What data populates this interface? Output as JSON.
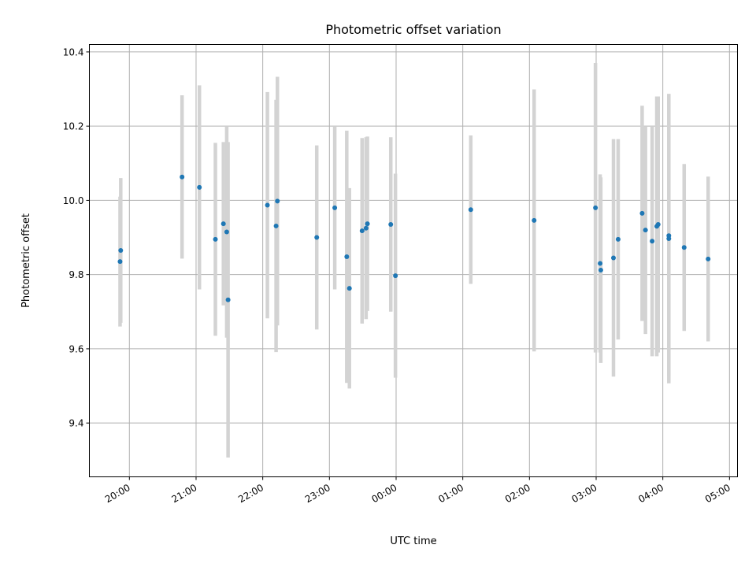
{
  "chart_data": {
    "type": "scatter",
    "title": "Photometric offset variation",
    "xlabel": "UTC time",
    "ylabel": "Photometric offset",
    "x_tick_labels": [
      "20:00",
      "21:00",
      "22:00",
      "23:00",
      "00:00",
      "01:00",
      "02:00",
      "03:00",
      "04:00",
      "05:00"
    ],
    "x_ticks_hours": [
      20,
      21,
      22,
      23,
      24,
      25,
      26,
      27,
      28,
      29
    ],
    "xlim_hours": [
      19.4,
      29.12
    ],
    "ylim": [
      9.255,
      10.42
    ],
    "y_ticks": [
      9.4,
      9.6,
      9.8,
      10.0,
      10.2,
      10.4
    ],
    "y_tick_labels": [
      "9.4",
      "9.6",
      "9.8",
      "10.0",
      "10.2",
      "10.4"
    ],
    "grid": true,
    "marker_color": "#1f77b4",
    "errorbar_color": "#d3d3d3",
    "points": [
      {
        "t": 19.86,
        "y": 9.835,
        "err": 0.175
      },
      {
        "t": 19.87,
        "y": 9.865,
        "err": 0.195
      },
      {
        "t": 20.79,
        "y": 10.063,
        "err": 0.22
      },
      {
        "t": 21.05,
        "y": 10.035,
        "err": 0.275
      },
      {
        "t": 21.29,
        "y": 9.895,
        "err": 0.26
      },
      {
        "t": 21.41,
        "y": 9.937,
        "err": 0.22
      },
      {
        "t": 21.46,
        "y": 9.915,
        "err": 0.285
      },
      {
        "t": 21.48,
        "y": 9.732,
        "err": 0.425
      },
      {
        "t": 22.07,
        "y": 9.987,
        "err": 0.305
      },
      {
        "t": 22.2,
        "y": 9.931,
        "err": 0.34
      },
      {
        "t": 22.22,
        "y": 9.998,
        "err": 0.335
      },
      {
        "t": 22.81,
        "y": 9.9,
        "err": 0.248
      },
      {
        "t": 23.08,
        "y": 9.98,
        "err": 0.22
      },
      {
        "t": 23.26,
        "y": 9.848,
        "err": 0.34
      },
      {
        "t": 23.3,
        "y": 9.763,
        "err": 0.27
      },
      {
        "t": 23.49,
        "y": 9.918,
        "err": 0.25
      },
      {
        "t": 23.55,
        "y": 9.925,
        "err": 0.245
      },
      {
        "t": 23.57,
        "y": 9.937,
        "err": 0.235
      },
      {
        "t": 23.92,
        "y": 9.935,
        "err": 0.235
      },
      {
        "t": 23.99,
        "y": 9.797,
        "err": 0.275
      },
      {
        "t": 25.12,
        "y": 9.975,
        "err": 0.2
      },
      {
        "t": 26.07,
        "y": 9.946,
        "err": 0.353
      },
      {
        "t": 26.99,
        "y": 9.98,
        "err": 0.39
      },
      {
        "t": 27.06,
        "y": 9.83,
        "err": 0.24
      },
      {
        "t": 27.07,
        "y": 9.812,
        "err": 0.25
      },
      {
        "t": 27.26,
        "y": 9.845,
        "err": 0.32
      },
      {
        "t": 27.33,
        "y": 9.895,
        "err": 0.27
      },
      {
        "t": 27.69,
        "y": 9.965,
        "err": 0.29
      },
      {
        "t": 27.74,
        "y": 9.92,
        "err": 0.28
      },
      {
        "t": 27.84,
        "y": 9.89,
        "err": 0.31
      },
      {
        "t": 27.91,
        "y": 9.93,
        "err": 0.35
      },
      {
        "t": 27.93,
        "y": 9.935,
        "err": 0.345
      },
      {
        "t": 28.09,
        "y": 9.897,
        "err": 0.39
      },
      {
        "t": 28.09,
        "y": 9.905,
        "err": 0.38
      },
      {
        "t": 28.32,
        "y": 9.873,
        "err": 0.225
      },
      {
        "t": 28.68,
        "y": 9.842,
        "err": 0.222
      }
    ]
  }
}
